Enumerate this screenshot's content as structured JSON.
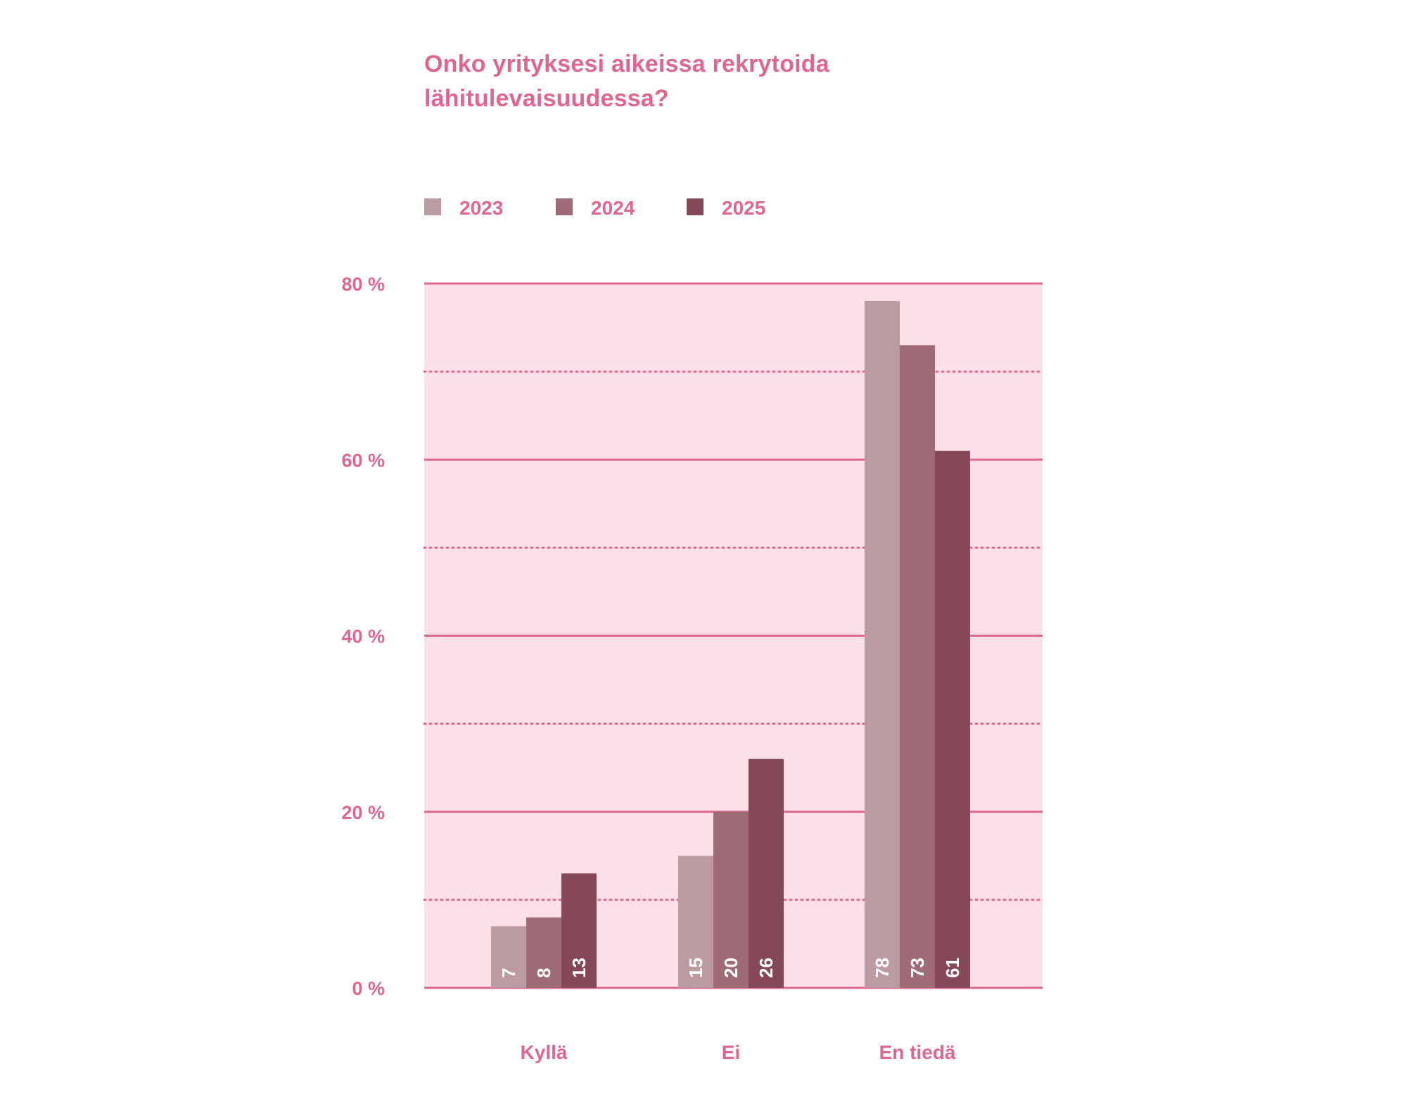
{
  "chart_data": {
    "type": "bar",
    "title_lines": [
      "Onko yrityksesi aikeissa rekrytoida",
      "lähitulevaisuudessa?"
    ],
    "categories": [
      "Kyllä",
      "Ei",
      "En tiedä"
    ],
    "series": [
      {
        "name": "2023",
        "values": [
          7,
          15,
          78
        ],
        "color": "#bc9aa2"
      },
      {
        "name": "2024",
        "values": [
          8,
          20,
          73
        ],
        "color": "#9e6b77"
      },
      {
        "name": "2025",
        "values": [
          13,
          26,
          61
        ],
        "color": "#844858"
      }
    ],
    "ylim": [
      0,
      80
    ],
    "yticks": [
      0,
      20,
      40,
      60,
      80
    ],
    "ytick_labels": [
      "0 %",
      "20 %",
      "40 %",
      "60 %",
      "80 %"
    ],
    "minor_gridlines": [
      10,
      30,
      50,
      70
    ],
    "legend_position": "top-left",
    "colors": {
      "accent": "#e1668f",
      "plot_background": "#fbe1e7",
      "value_label": "#ffffff"
    }
  }
}
